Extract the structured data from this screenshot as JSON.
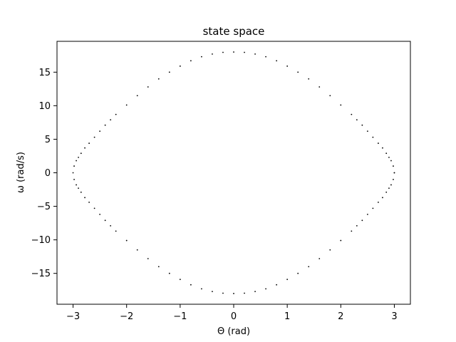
{
  "chart_data": {
    "type": "scatter",
    "title": "state space",
    "xlabel": "Θ (rad)",
    "ylabel": "ω (rad/s)",
    "xlim": [
      -3.3,
      3.3
    ],
    "ylim": [
      -19.6,
      19.6
    ],
    "xticks": [
      -3,
      -2,
      -1,
      0,
      1,
      2,
      3
    ],
    "xtick_labels": [
      "−3",
      "−2",
      "−1",
      "0",
      "1",
      "2",
      "3"
    ],
    "yticks": [
      -15,
      -10,
      -5,
      0,
      5,
      10,
      15
    ],
    "ytick_labels": [
      "−15",
      "−10",
      "−5",
      "0",
      "5",
      "10",
      "15"
    ],
    "grid": false,
    "marker_color": "#000000",
    "series": [
      {
        "x": [
          3.0,
          2.98,
          2.94,
          2.9,
          2.85,
          2.78,
          2.7,
          2.6,
          2.5,
          2.4,
          2.3,
          2.2,
          2.0,
          1.8,
          1.6,
          1.4,
          1.2,
          1.0,
          0.8,
          0.6,
          0.4,
          0.2,
          0.0,
          -0.2,
          -0.4,
          -0.6,
          -0.8,
          -1.0,
          -1.2,
          -1.4,
          -1.6,
          -1.8,
          -2.0,
          -2.2,
          -2.3,
          -2.4,
          -2.5,
          -2.6,
          -2.7,
          -2.78,
          -2.85,
          -2.9,
          -2.94,
          -2.98,
          -3.0,
          -2.98,
          -2.94,
          -2.9,
          -2.85,
          -2.78,
          -2.7,
          -2.6,
          -2.5,
          -2.4,
          -2.3,
          -2.2,
          -2.0,
          -1.8,
          -1.6,
          -1.4,
          -1.2,
          -1.0,
          -0.8,
          -0.6,
          -0.4,
          -0.2,
          0.0,
          0.2,
          0.4,
          0.6,
          0.8,
          1.0,
          1.2,
          1.4,
          1.6,
          1.8,
          2.0,
          2.2,
          2.3,
          2.4,
          2.5,
          2.6,
          2.7,
          2.78,
          2.85,
          2.9,
          2.94,
          2.98,
          3.0
        ],
        "y": [
          0.0,
          1.0,
          1.8,
          2.3,
          2.9,
          3.7,
          4.4,
          5.3,
          6.2,
          7.1,
          7.9,
          8.7,
          10.1,
          11.5,
          12.8,
          14.0,
          15.0,
          15.9,
          16.7,
          17.3,
          17.7,
          17.95,
          18.0,
          17.95,
          17.7,
          17.3,
          16.7,
          15.9,
          15.0,
          14.0,
          12.8,
          11.5,
          10.1,
          8.7,
          7.9,
          7.1,
          6.2,
          5.3,
          4.4,
          3.7,
          2.9,
          2.3,
          1.8,
          1.0,
          0.0,
          -1.0,
          -1.8,
          -2.3,
          -2.9,
          -3.7,
          -4.4,
          -5.3,
          -6.2,
          -7.1,
          -7.9,
          -8.7,
          -10.1,
          -11.5,
          -12.8,
          -14.0,
          -15.0,
          -15.9,
          -16.7,
          -17.3,
          -17.7,
          -17.95,
          -18.0,
          -17.95,
          -17.7,
          -17.3,
          -16.7,
          -15.9,
          -15.0,
          -14.0,
          -12.8,
          -11.5,
          -10.1,
          -8.7,
          -7.9,
          -7.1,
          -6.2,
          -5.3,
          -4.4,
          -3.7,
          -2.9,
          -2.3,
          -1.8,
          -1.0,
          0.0
        ]
      }
    ]
  }
}
